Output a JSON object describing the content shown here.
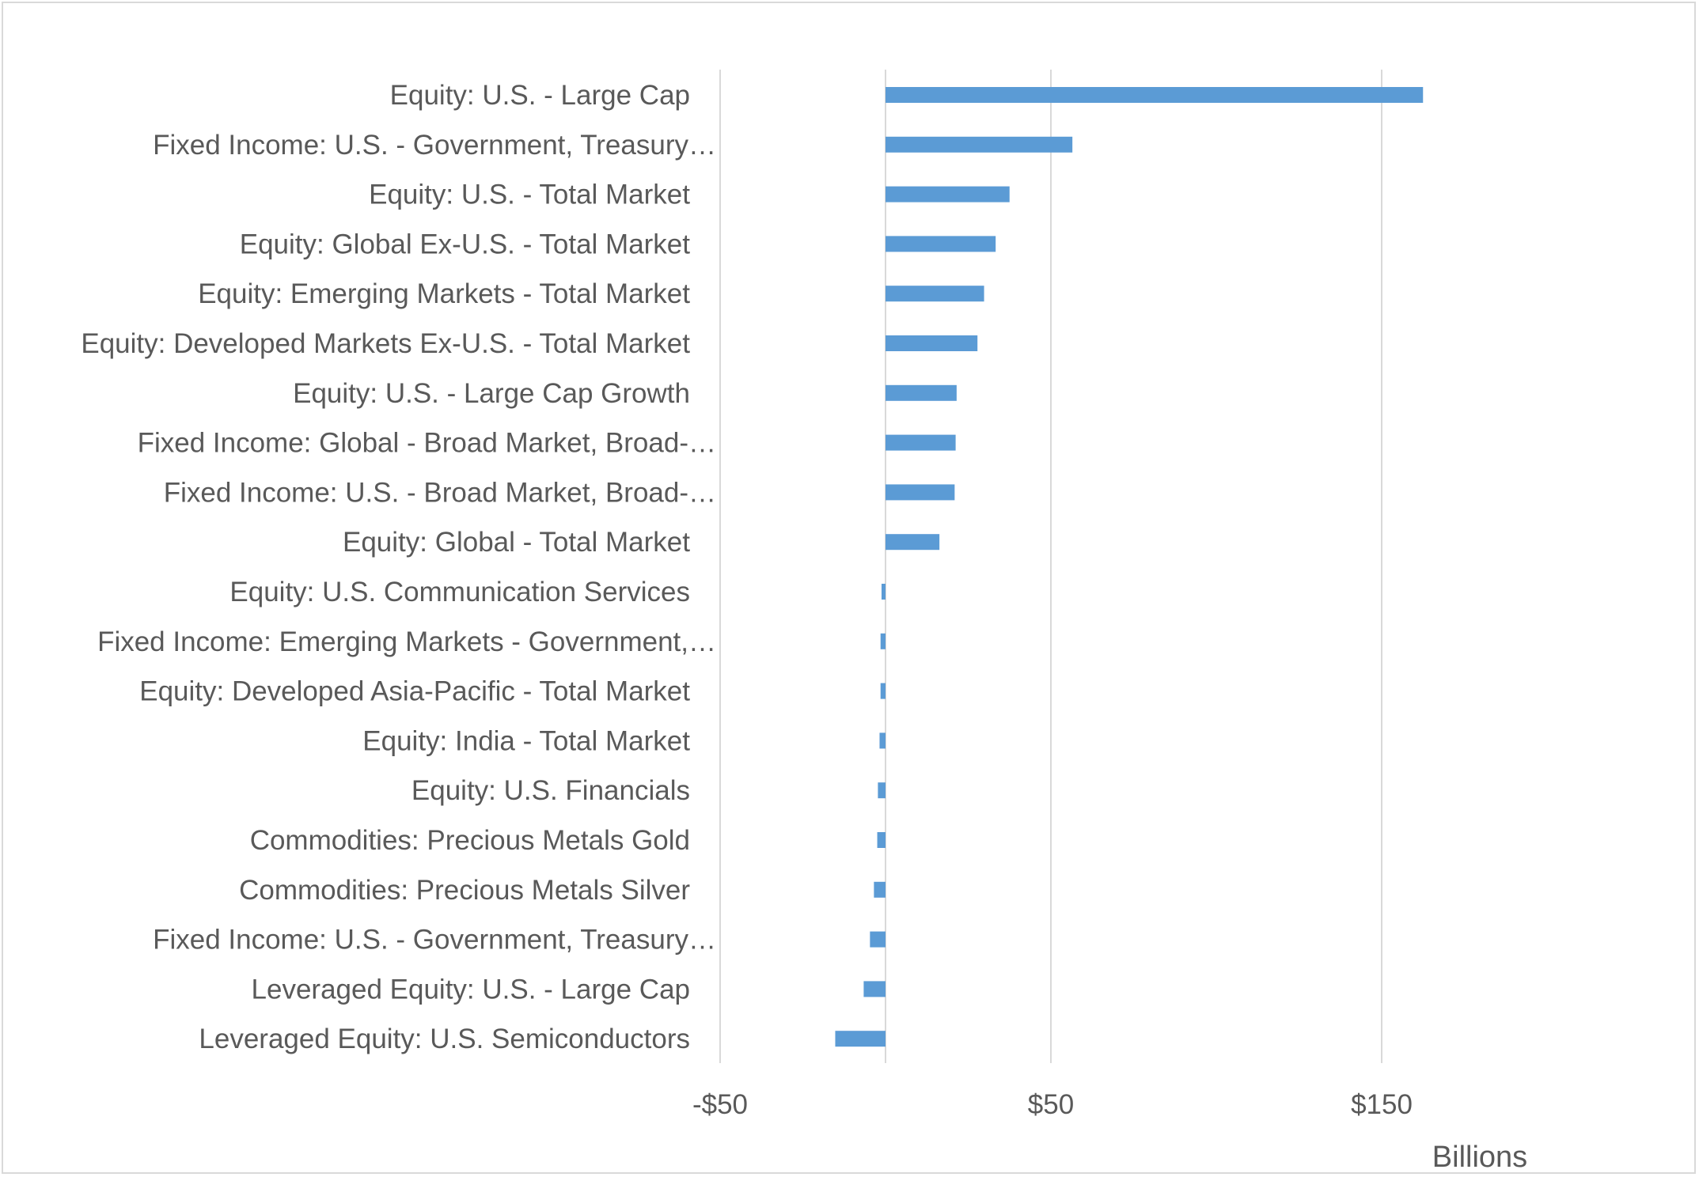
{
  "chart_data": {
    "type": "bar",
    "orientation": "horizontal",
    "title": "",
    "xlabel": "",
    "ylabel": "",
    "display_unit": "Billions",
    "categories": [
      "Equity: U.S. - Large Cap",
      "Fixed Income: U.S. - Government, Treasury…",
      "Equity: U.S. - Total Market",
      "Equity: Global Ex-U.S. - Total Market",
      "Equity: Emerging Markets - Total Market",
      "Equity: Developed Markets Ex-U.S. - Total Market",
      "Equity: U.S. - Large Cap Growth",
      "Fixed Income: Global - Broad Market, Broad-…",
      "Fixed Income: U.S. - Broad Market, Broad-…",
      "Equity: Global - Total Market",
      "Equity: U.S. Communication Services",
      "Fixed Income: Emerging Markets - Government,…",
      "Equity: Developed Asia-Pacific - Total Market",
      "Equity: India - Total Market",
      "Equity: U.S. Financials",
      "Commodities: Precious Metals Gold",
      "Commodities: Precious Metals Silver",
      "Fixed Income: U.S. - Government, Treasury…",
      "Leveraged Equity: U.S. - Large Cap",
      "Leveraged Equity: U.S. Semiconductors"
    ],
    "values": [
      162.5,
      56.5,
      37.5,
      33.3,
      29.8,
      27.8,
      21.5,
      21.2,
      20.9,
      16.3,
      -1.2,
      -1.5,
      -1.5,
      -1.8,
      -2.3,
      -2.5,
      -3.5,
      -4.7,
      -6.6,
      -15.2
    ],
    "xlim": [
      -50,
      200
    ],
    "xticks": [
      -50,
      50,
      150
    ],
    "xtick_labels": [
      "-$50",
      "$50",
      "$150"
    ],
    "grid": true,
    "legend": "none",
    "colors": {
      "bar": "#5b9bd5",
      "grid": "#d9d9d9",
      "text": "#595959"
    }
  }
}
